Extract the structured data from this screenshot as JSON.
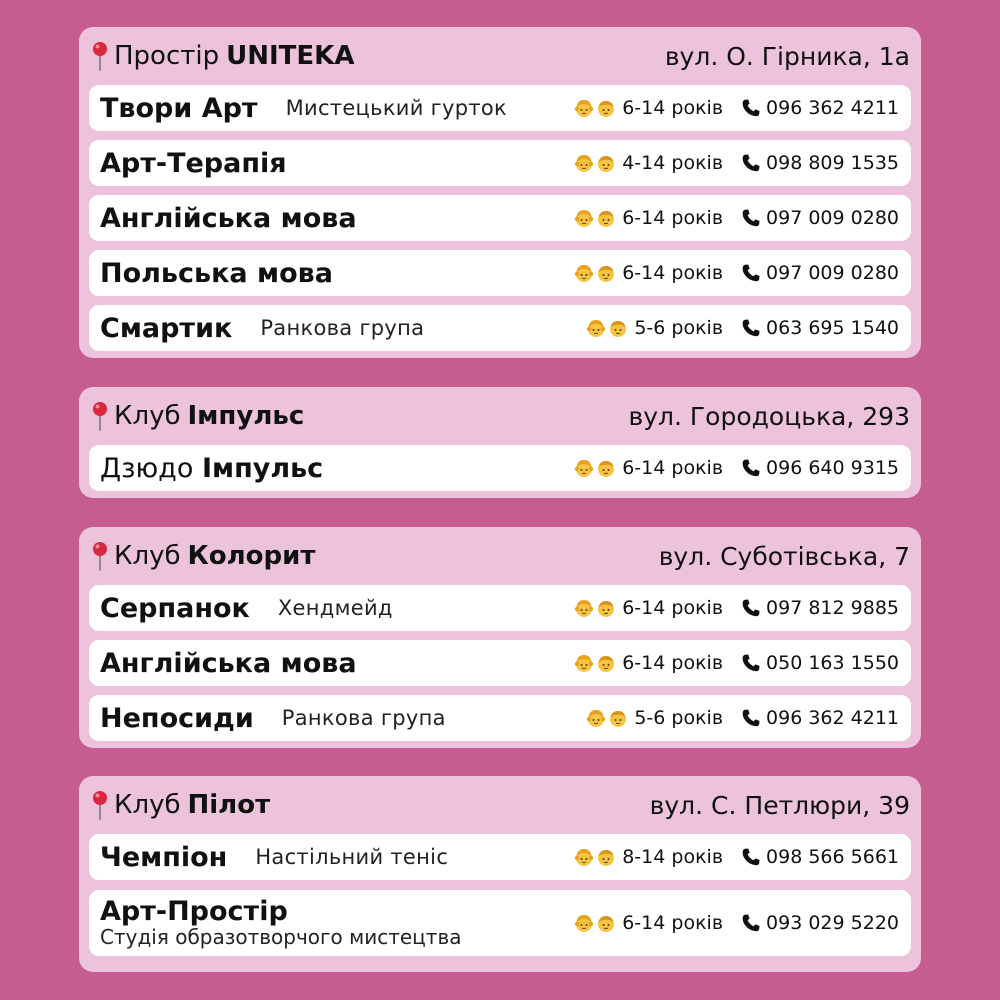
{
  "sections": [
    {
      "prefix": "Простір",
      "name": "UNITEKA",
      "address": "вул. О. Гірника, 1а",
      "rows": [
        {
          "title": "Твори Арт",
          "subtitle": "Мистецький гурток",
          "age": "6-14 років",
          "phone": "096 362 4211"
        },
        {
          "title": "Арт-Терапія",
          "subtitle": "",
          "age": "4-14 років",
          "phone": "098 809 1535"
        },
        {
          "title": "Англійська мова",
          "subtitle": "",
          "age": "6-14 років",
          "phone": "097 009 0280"
        },
        {
          "title": "Польська мова",
          "subtitle": "",
          "age": "6-14 років",
          "phone": "097 009 0280"
        },
        {
          "title": "Смартик",
          "subtitle": "Ранкова група",
          "age": "5-6 років",
          "phone": "063 695 1540"
        }
      ]
    },
    {
      "prefix": "Клуб",
      "name": "Імпульс",
      "address": "вул. Городоцька, 293",
      "rows": [
        {
          "title_plain": "Дзюдо",
          "title_bold": "Імпульс",
          "age": "6-14 років",
          "phone": "096 640 9315"
        }
      ]
    },
    {
      "prefix": "Клуб",
      "name": "Колорит",
      "address": "вул. Суботівська, 7",
      "rows": [
        {
          "title": "Серпанок",
          "subtitle": "Хендмейд",
          "age": "6-14 років",
          "phone": "097 812 9885"
        },
        {
          "title": "Англійська мова",
          "subtitle": "",
          "age": "6-14 років",
          "phone": "050 163 1550"
        },
        {
          "title": "Непосиди",
          "subtitle": "Ранкова група",
          "age": "5-6 років",
          "phone": "096 362 4211"
        }
      ]
    },
    {
      "prefix": "Клуб",
      "name": "Пілот",
      "address": "вул. С. Петлюри, 39",
      "rows": [
        {
          "title": "Чемпіон",
          "subtitle": "Настільний теніс",
          "age": "8-14 років",
          "phone": "098 566 5661"
        },
        {
          "title": "Арт-Простір",
          "subtitle": "Студія образотворчого мистецтва",
          "age": "6-14 років",
          "phone": "093 029 5220"
        }
      ]
    }
  ],
  "icons": {
    "pin": "round-pushpin-icon",
    "girl": "girl-face-icon",
    "boy": "boy-face-icon",
    "phone": "telephone-receiver-icon"
  },
  "colors": {
    "background": "#c65d90",
    "card": "#ecc3da",
    "row": "#ffffff",
    "pin_red": "#d7263d"
  }
}
